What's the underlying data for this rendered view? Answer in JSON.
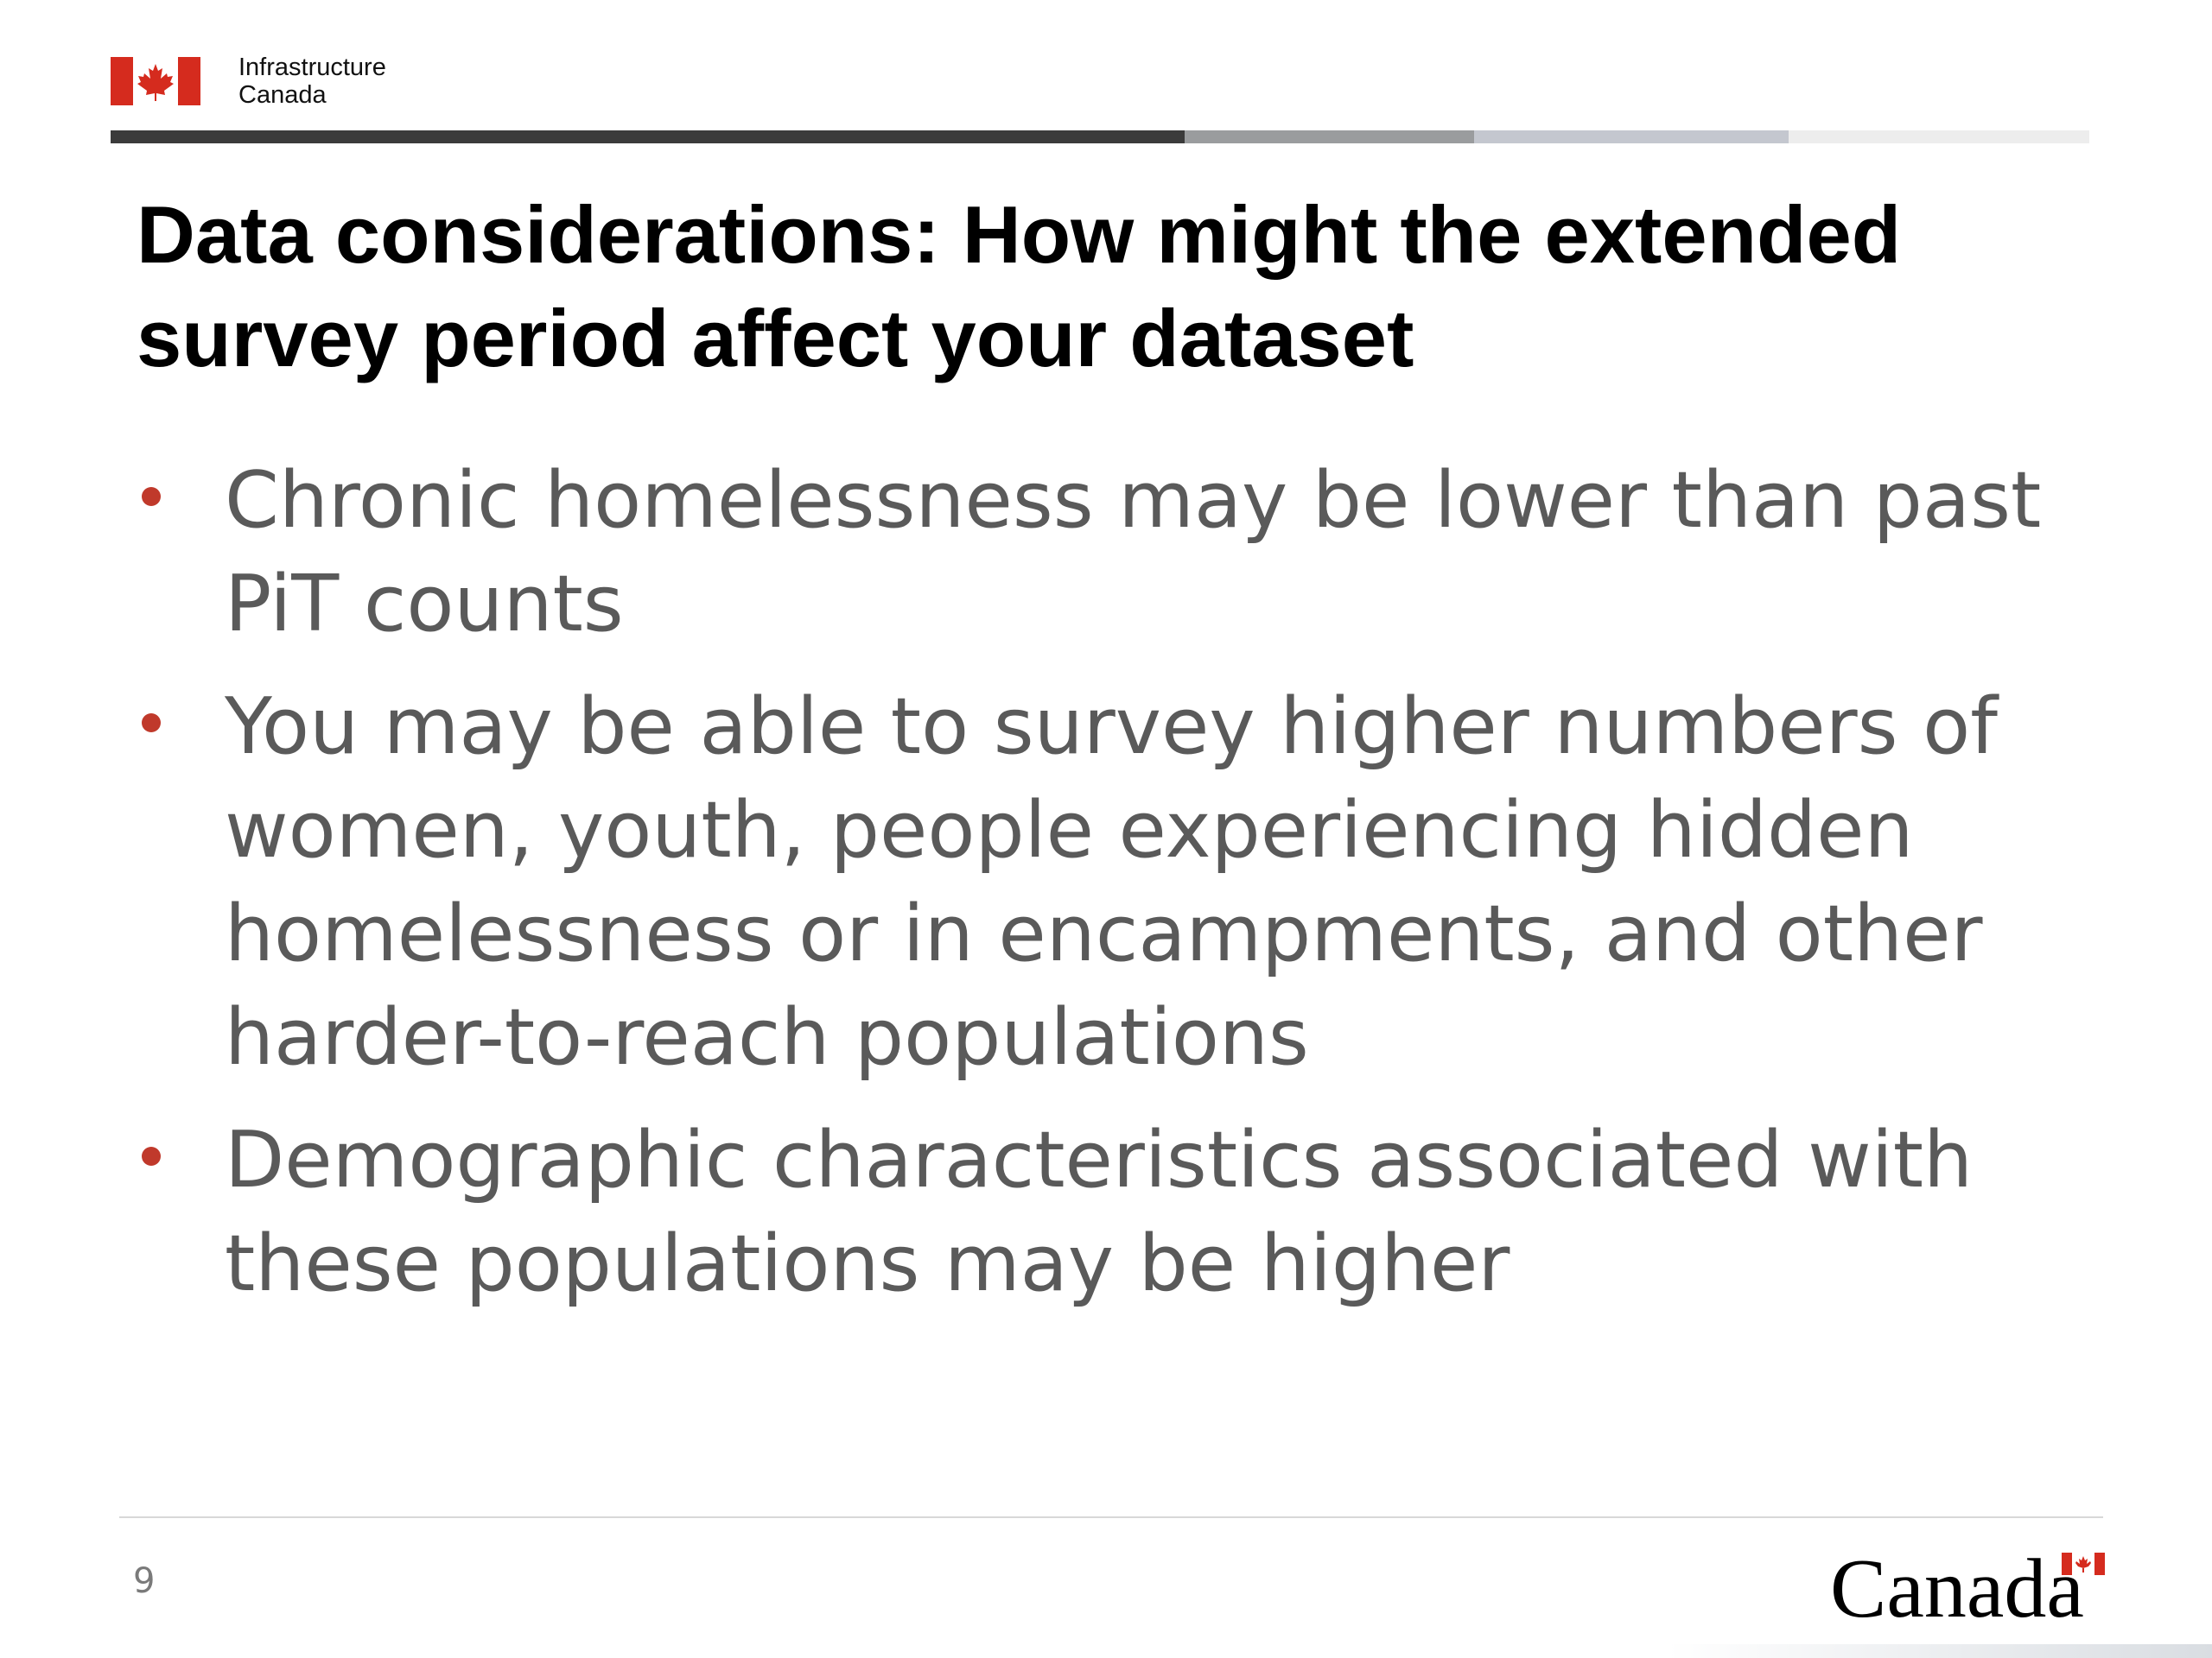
{
  "header": {
    "department_line1": "Infrastructure",
    "department_line2": "Canada",
    "bar_segments": [
      {
        "color": "#3b3b3b",
        "fraction": 0.543
      },
      {
        "color": "#9a9c9e",
        "fraction": 0.146
      },
      {
        "color": "#c4c7cf",
        "fraction": 0.159
      },
      {
        "color": "#ededed",
        "fraction": 0.152
      }
    ]
  },
  "slide": {
    "title": "Data considerations: How might the extended survey period affect your dataset",
    "bullets": [
      "Chronic homelessness may be lower than past PiT counts",
      "You may be able to survey higher numbers of women, youth, people experiencing hidden homelessness or in encampments, and other harder-to-reach populations",
      "Demographic characteristics associated with these populations may be higher"
    ],
    "bullet_color": "#c0392b",
    "text_color": "#5a5a5a"
  },
  "footer": {
    "page_number": "9",
    "wordmark": "Canada",
    "flag_color": "#d52b1e"
  }
}
